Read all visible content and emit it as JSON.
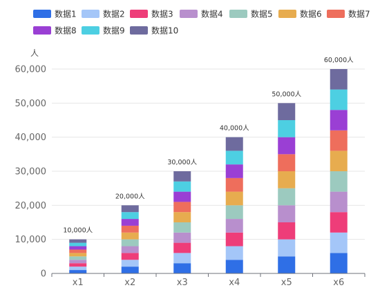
{
  "chart_data": {
    "type": "bar",
    "stacked": true,
    "categories": [
      "x1",
      "x2",
      "x3",
      "x4",
      "x5",
      "x6"
    ],
    "series": [
      {
        "name": "数据1",
        "color": "#2f6fe6",
        "values": [
          1000,
          2000,
          3000,
          4000,
          5000,
          6000
        ]
      },
      {
        "name": "数据2",
        "color": "#a4c6f8",
        "values": [
          1000,
          2000,
          3000,
          4000,
          5000,
          6000
        ]
      },
      {
        "name": "数据3",
        "color": "#ee3d79",
        "values": [
          1000,
          2000,
          3000,
          4000,
          5000,
          6000
        ]
      },
      {
        "name": "数据4",
        "color": "#b88fcd",
        "values": [
          1000,
          2000,
          3000,
          4000,
          5000,
          6000
        ]
      },
      {
        "name": "数据5",
        "color": "#9ccabf",
        "values": [
          1000,
          2000,
          3000,
          4000,
          5000,
          6000
        ]
      },
      {
        "name": "数据6",
        "color": "#e7ac4f",
        "values": [
          1000,
          2000,
          3000,
          4000,
          5000,
          6000
        ]
      },
      {
        "name": "数据7",
        "color": "#ee6e5c",
        "values": [
          1000,
          2000,
          3000,
          4000,
          5000,
          6000
        ]
      },
      {
        "name": "数据8",
        "color": "#9a3fd4",
        "values": [
          1000,
          2000,
          3000,
          4000,
          5000,
          6000
        ]
      },
      {
        "name": "数据9",
        "color": "#4dcfe2",
        "values": [
          1000,
          2000,
          3000,
          4000,
          5000,
          6000
        ]
      },
      {
        "name": "数据10",
        "color": "#6e6b9e",
        "values": [
          1000,
          2000,
          3000,
          4000,
          5000,
          6000
        ]
      }
    ],
    "totals": [
      "10,000人",
      "20,000人",
      "30,000人",
      "40,000人",
      "50,000人",
      "60,000人"
    ],
    "ylabel": "人",
    "ylim": [
      0,
      60000
    ],
    "yticks": [
      0,
      10000,
      20000,
      30000,
      40000,
      50000,
      60000
    ],
    "ytick_labels": [
      "0",
      "10,000",
      "20,000",
      "30,000",
      "40,000",
      "50,000",
      "60,000"
    ],
    "grid": true,
    "legend_position": "top"
  }
}
